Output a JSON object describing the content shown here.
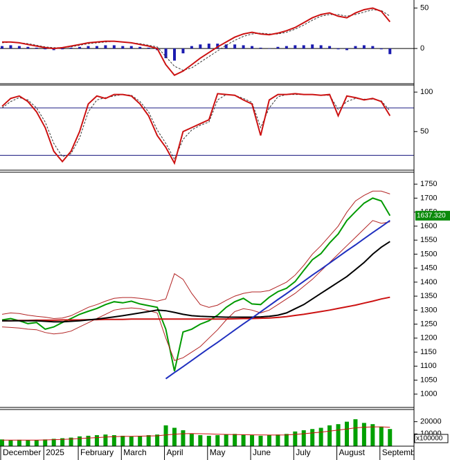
{
  "chart_data": [
    {
      "type": "line",
      "ylim": [
        -41,
        60
      ],
      "yticks": [
        0,
        50
      ],
      "levels": [
        0
      ],
      "level_color": "#000000",
      "series": [
        {
          "kind": "bar",
          "color": "#1c1cb0",
          "values": [
            3,
            4,
            3,
            2,
            1,
            -1,
            -2,
            -1,
            1,
            2,
            3,
            3,
            4,
            4,
            3,
            3,
            2,
            1,
            -2,
            -12,
            -15,
            -6,
            3,
            5,
            6,
            6,
            5,
            5,
            4,
            3,
            1,
            0,
            2,
            3,
            4,
            4,
            5,
            4,
            3,
            -1,
            -2,
            3,
            4,
            3,
            -1,
            -7
          ]
        },
        {
          "kind": "dashed",
          "color": "#333333",
          "values": [
            7,
            8,
            7,
            6,
            4,
            2,
            1,
            1,
            2,
            4,
            6,
            7,
            8,
            9,
            8,
            7,
            6,
            4,
            2,
            -10,
            -22,
            -27,
            -24,
            -17,
            -10,
            -3,
            4,
            10,
            15,
            18,
            19,
            18,
            18,
            20,
            24,
            29,
            35,
            40,
            42,
            42,
            40,
            42,
            45,
            48,
            47,
            40
          ]
        },
        {
          "kind": "line",
          "color": "#cc1111",
          "values": [
            8,
            8,
            7,
            5,
            3,
            1,
            0,
            1,
            3,
            5,
            7,
            8,
            9,
            9,
            8,
            7,
            5,
            3,
            0,
            -20,
            -33,
            -28,
            -20,
            -12,
            -5,
            2,
            8,
            14,
            18,
            20,
            18,
            17,
            19,
            22,
            26,
            32,
            38,
            42,
            44,
            40,
            38,
            44,
            48,
            50,
            46,
            33
          ]
        }
      ]
    },
    {
      "type": "line",
      "ylim": [
        2,
        108
      ],
      "yticks": [
        50,
        100
      ],
      "levels": [
        80,
        20
      ],
      "level_color": "#1a1a80",
      "series": [
        {
          "kind": "dashed",
          "color": "#333333",
          "values": [
            80,
            88,
            93,
            90,
            80,
            62,
            35,
            18,
            22,
            42,
            75,
            90,
            93,
            95,
            97,
            96,
            88,
            75,
            52,
            35,
            15,
            40,
            52,
            58,
            62,
            90,
            97,
            96,
            92,
            87,
            55,
            80,
            94,
            97,
            97,
            97,
            97,
            96,
            96,
            78,
            88,
            92,
            91,
            91,
            89,
            76
          ]
        },
        {
          "kind": "line",
          "color": "#cc1111",
          "values": [
            82,
            92,
            95,
            88,
            75,
            55,
            25,
            12,
            25,
            50,
            85,
            95,
            92,
            97,
            97,
            95,
            85,
            70,
            45,
            30,
            10,
            50,
            55,
            60,
            65,
            98,
            97,
            96,
            90,
            85,
            45,
            90,
            97,
            97,
            98,
            97,
            97,
            96,
            97,
            70,
            95,
            93,
            90,
            92,
            88,
            70
          ]
        }
      ]
    },
    {
      "type": "line",
      "ylim": [
        955,
        1790
      ],
      "yticks": [
        1000,
        1050,
        1100,
        1150,
        1200,
        1250,
        1300,
        1350,
        1400,
        1450,
        1500,
        1550,
        1600,
        1650,
        1700,
        1750
      ],
      "series": [
        {
          "kind": "line",
          "color": "#009a00",
          "values": [
            1265,
            1270,
            1262,
            1252,
            1256,
            1232,
            1240,
            1256,
            1270,
            1285,
            1296,
            1306,
            1320,
            1330,
            1326,
            1332,
            1322,
            1316,
            1310,
            1232,
            1082,
            1222,
            1232,
            1250,
            1262,
            1282,
            1310,
            1330,
            1342,
            1322,
            1320,
            1346,
            1366,
            1378,
            1402,
            1442,
            1480,
            1502,
            1540,
            1572,
            1620,
            1652,
            1682,
            1700,
            1690,
            1637.32
          ],
          "value_labels": [
            null,
            null,
            null,
            null,
            null,
            null,
            null,
            null,
            null,
            null,
            null,
            null,
            null,
            null,
            null,
            null,
            null,
            null,
            null,
            null,
            null,
            null,
            null,
            null,
            null,
            null,
            null,
            null,
            null,
            null,
            null,
            null,
            null,
            null,
            null,
            null,
            null,
            null,
            null,
            null,
            null,
            null,
            null,
            null,
            null,
            "1637.320"
          ]
        },
        {
          "kind": "thin",
          "color": "#b22222",
          "values": [
            1285,
            1290,
            1288,
            1282,
            1278,
            1275,
            1270,
            1272,
            1280,
            1295,
            1310,
            1320,
            1332,
            1342,
            1345,
            1345,
            1342,
            1338,
            1332,
            1340,
            1430,
            1410,
            1360,
            1320,
            1310,
            1318,
            1335,
            1350,
            1360,
            1365,
            1365,
            1370,
            1385,
            1400,
            1425,
            1460,
            1500,
            1530,
            1565,
            1600,
            1650,
            1690,
            1710,
            1725,
            1725,
            1715
          ]
        },
        {
          "kind": "thin",
          "color": "#b22222",
          "values": [
            1240,
            1238,
            1236,
            1232,
            1230,
            1220,
            1215,
            1218,
            1225,
            1240,
            1255,
            1270,
            1285,
            1300,
            1305,
            1308,
            1305,
            1298,
            1290,
            1200,
            1120,
            1130,
            1150,
            1170,
            1200,
            1230,
            1265,
            1295,
            1305,
            1300,
            1290,
            1300,
            1320,
            1340,
            1360,
            1385,
            1410,
            1440,
            1470,
            1500,
            1530,
            1560,
            1590,
            1620,
            1610,
            1615
          ]
        },
        {
          "kind": "bold",
          "color": "#cc1111",
          "values": [
            1262,
            1262,
            1263,
            1263,
            1264,
            1264,
            1264,
            1265,
            1265,
            1265,
            1266,
            1266,
            1267,
            1267,
            1267,
            1268,
            1268,
            1268,
            1268,
            1268,
            1268,
            1268,
            1268,
            1268,
            1268,
            1268,
            1268,
            1269,
            1270,
            1270,
            1271,
            1272,
            1274,
            1277,
            1281,
            1285,
            1290,
            1295,
            1300,
            1306,
            1312,
            1318,
            1325,
            1332,
            1340,
            1346
          ]
        },
        {
          "kind": "bold",
          "color": "#000000",
          "values": [
            1262,
            1262,
            1262,
            1262,
            1262,
            1260,
            1258,
            1258,
            1260,
            1262,
            1265,
            1268,
            1272,
            1276,
            1280,
            1285,
            1290,
            1295,
            1300,
            1298,
            1292,
            1285,
            1280,
            1278,
            1277,
            1276,
            1275,
            1275,
            1275,
            1275,
            1276,
            1278,
            1282,
            1290,
            1305,
            1320,
            1340,
            1360,
            1380,
            1400,
            1420,
            1445,
            1470,
            1500,
            1525,
            1545
          ]
        },
        {
          "kind": "bold",
          "color": "#1f2fbf",
          "values": [
            null,
            null,
            null,
            null,
            null,
            null,
            null,
            null,
            null,
            null,
            null,
            null,
            null,
            null,
            null,
            null,
            null,
            null,
            null,
            1055,
            1077,
            1098,
            1120,
            1142,
            1164,
            1185,
            1207,
            1229,
            1251,
            1272,
            1294,
            1316,
            1338,
            1359,
            1381,
            1403,
            1425,
            1446,
            1468,
            1490,
            1512,
            1533,
            1555,
            1577,
            1598,
            1620
          ]
        }
      ]
    },
    {
      "type": "bar",
      "ylim": [
        0,
        29400
      ],
      "yticks": [
        10000,
        20000
      ],
      "unit_label": "x100000",
      "categories": [
        "December",
        null,
        null,
        null,
        null,
        "2025",
        null,
        null,
        null,
        "February",
        null,
        null,
        null,
        null,
        "March",
        null,
        null,
        null,
        null,
        "April",
        null,
        null,
        null,
        null,
        "May",
        null,
        null,
        null,
        null,
        "June",
        null,
        null,
        null,
        null,
        "July",
        null,
        null,
        null,
        null,
        "August",
        null,
        null,
        null,
        null,
        "September",
        null
      ],
      "series": [
        {
          "kind": "bar",
          "color": "#00a000",
          "values": [
            5500,
            5000,
            5200,
            4800,
            5000,
            5500,
            6000,
            6500,
            7000,
            8000,
            8500,
            9000,
            9500,
            9000,
            8500,
            8000,
            8500,
            9000,
            9500,
            17000,
            15000,
            13000,
            10000,
            9000,
            8500,
            9000,
            9500,
            10000,
            9500,
            9000,
            8500,
            9000,
            9500,
            10000,
            12000,
            13000,
            14000,
            15000,
            17000,
            18000,
            20000,
            22000,
            19000,
            18000,
            16000,
            14000
          ]
        },
        {
          "kind": "thin",
          "color": "#cc1111",
          "values": [
            5000,
            5000,
            5000,
            5000,
            5000,
            5100,
            5300,
            5500,
            5800,
            6200,
            6600,
            7000,
            7400,
            7800,
            8000,
            8100,
            8200,
            8300,
            8500,
            9200,
            9800,
            10200,
            10300,
            10200,
            10000,
            9800,
            9600,
            9500,
            9400,
            9300,
            9200,
            9100,
            9100,
            9200,
            9600,
            10200,
            10800,
            11500,
            12300,
            13100,
            14000,
            15000,
            15500,
            15800,
            15800,
            15500
          ]
        }
      ]
    }
  ]
}
